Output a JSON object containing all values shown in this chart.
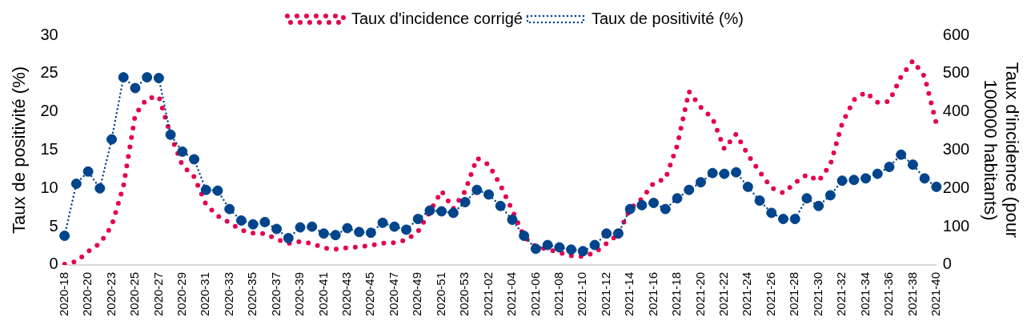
{
  "chart_data": {
    "type": "line",
    "categories": [
      "2020-18",
      null,
      "2020-20",
      null,
      "2020-23",
      null,
      "2020-25",
      null,
      "2020-27",
      null,
      "2020-29",
      null,
      "2020-31",
      null,
      "2020-33",
      null,
      "2020-35",
      null,
      "2020-37",
      null,
      "2020-39",
      null,
      "2020-41",
      null,
      "2020-43",
      null,
      "2020-45",
      null,
      "2020-47",
      null,
      "2020-49",
      null,
      "2020-51",
      null,
      "2020-53",
      null,
      "2021-02",
      null,
      "2021-04",
      null,
      "2021-06",
      null,
      "2021-08",
      null,
      "2021-10",
      null,
      "2021-12",
      null,
      "2021-14",
      null,
      "2021-16",
      null,
      "2021-18",
      null,
      "2021-20",
      null,
      "2021-22",
      null,
      "2021-24",
      null,
      "2021-26",
      null,
      "2021-28",
      null,
      "2021-30",
      null,
      "2021-32",
      null,
      "2021-34",
      null,
      "2021-36",
      null,
      "2021-38",
      null,
      "2021-40"
    ],
    "series": [
      {
        "name": "Taux d'incidence corrigé",
        "color": "#e4004f",
        "axis": "y2",
        "line_style": "dotted",
        "marker": "none",
        "values": [
          2,
          9,
          35,
          56,
          102,
          206,
          392,
          435,
          440,
          340,
          260,
          230,
          158,
          128,
          110,
          91,
          83,
          82,
          67,
          56,
          61,
          56,
          44,
          41,
          45,
          47,
          51,
          57,
          58,
          65,
          87,
          139,
          193,
          147,
          193,
          279,
          262,
          208,
          143,
          74,
          48,
          41,
          32,
          24,
          22,
          32,
          56,
          80,
          147,
          173,
          214,
          225,
          312,
          453,
          412,
          383,
          303,
          342,
          288,
          243,
          201,
          188,
          214,
          236,
          219,
          262,
          370,
          431,
          451,
          425,
          427,
          492,
          533,
          492,
          368
        ]
      },
      {
        "name": "Taux de positivité (%)",
        "color": "#00448c",
        "line_style": "dotted",
        "marker": "circle",
        "values": [
          3.8,
          10.6,
          12.2,
          10.0,
          16.4,
          24.5,
          23.1,
          24.5,
          24.4,
          17.0,
          14.8,
          13.8,
          9.8,
          9.7,
          7.3,
          5.8,
          5.3,
          5.6,
          4.7,
          3.5,
          4.9,
          5.0,
          4.1,
          3.9,
          4.8,
          4.3,
          4.2,
          5.5,
          5.0,
          4.6,
          6.0,
          7.1,
          7.0,
          6.8,
          8.2,
          9.8,
          9.2,
          7.7,
          5.9,
          3.8,
          2.1,
          2.6,
          2.3,
          2.0,
          1.8,
          2.6,
          4.1,
          4.1,
          7.3,
          7.8,
          8.1,
          7.3,
          8.7,
          9.8,
          10.8,
          12.0,
          11.9,
          12.1,
          10.2,
          8.4,
          6.8,
          6.0,
          6.0,
          8.7,
          7.7,
          9.1,
          11.0,
          11.1,
          11.3,
          11.9,
          12.8,
          14.4,
          13.1,
          11.3,
          10.2
        ]
      }
    ],
    "ylabel": "Taux de positivité (%)",
    "y2label": "Taux d'incidence (pour 100000 habitants)",
    "ylim": [
      0,
      30
    ],
    "yticks": [
      0,
      5,
      10,
      15,
      20,
      25,
      30
    ],
    "y2lim": [
      0,
      600
    ],
    "y2ticks": [
      0,
      100,
      200,
      300,
      400,
      500,
      600
    ],
    "legend": "top"
  }
}
